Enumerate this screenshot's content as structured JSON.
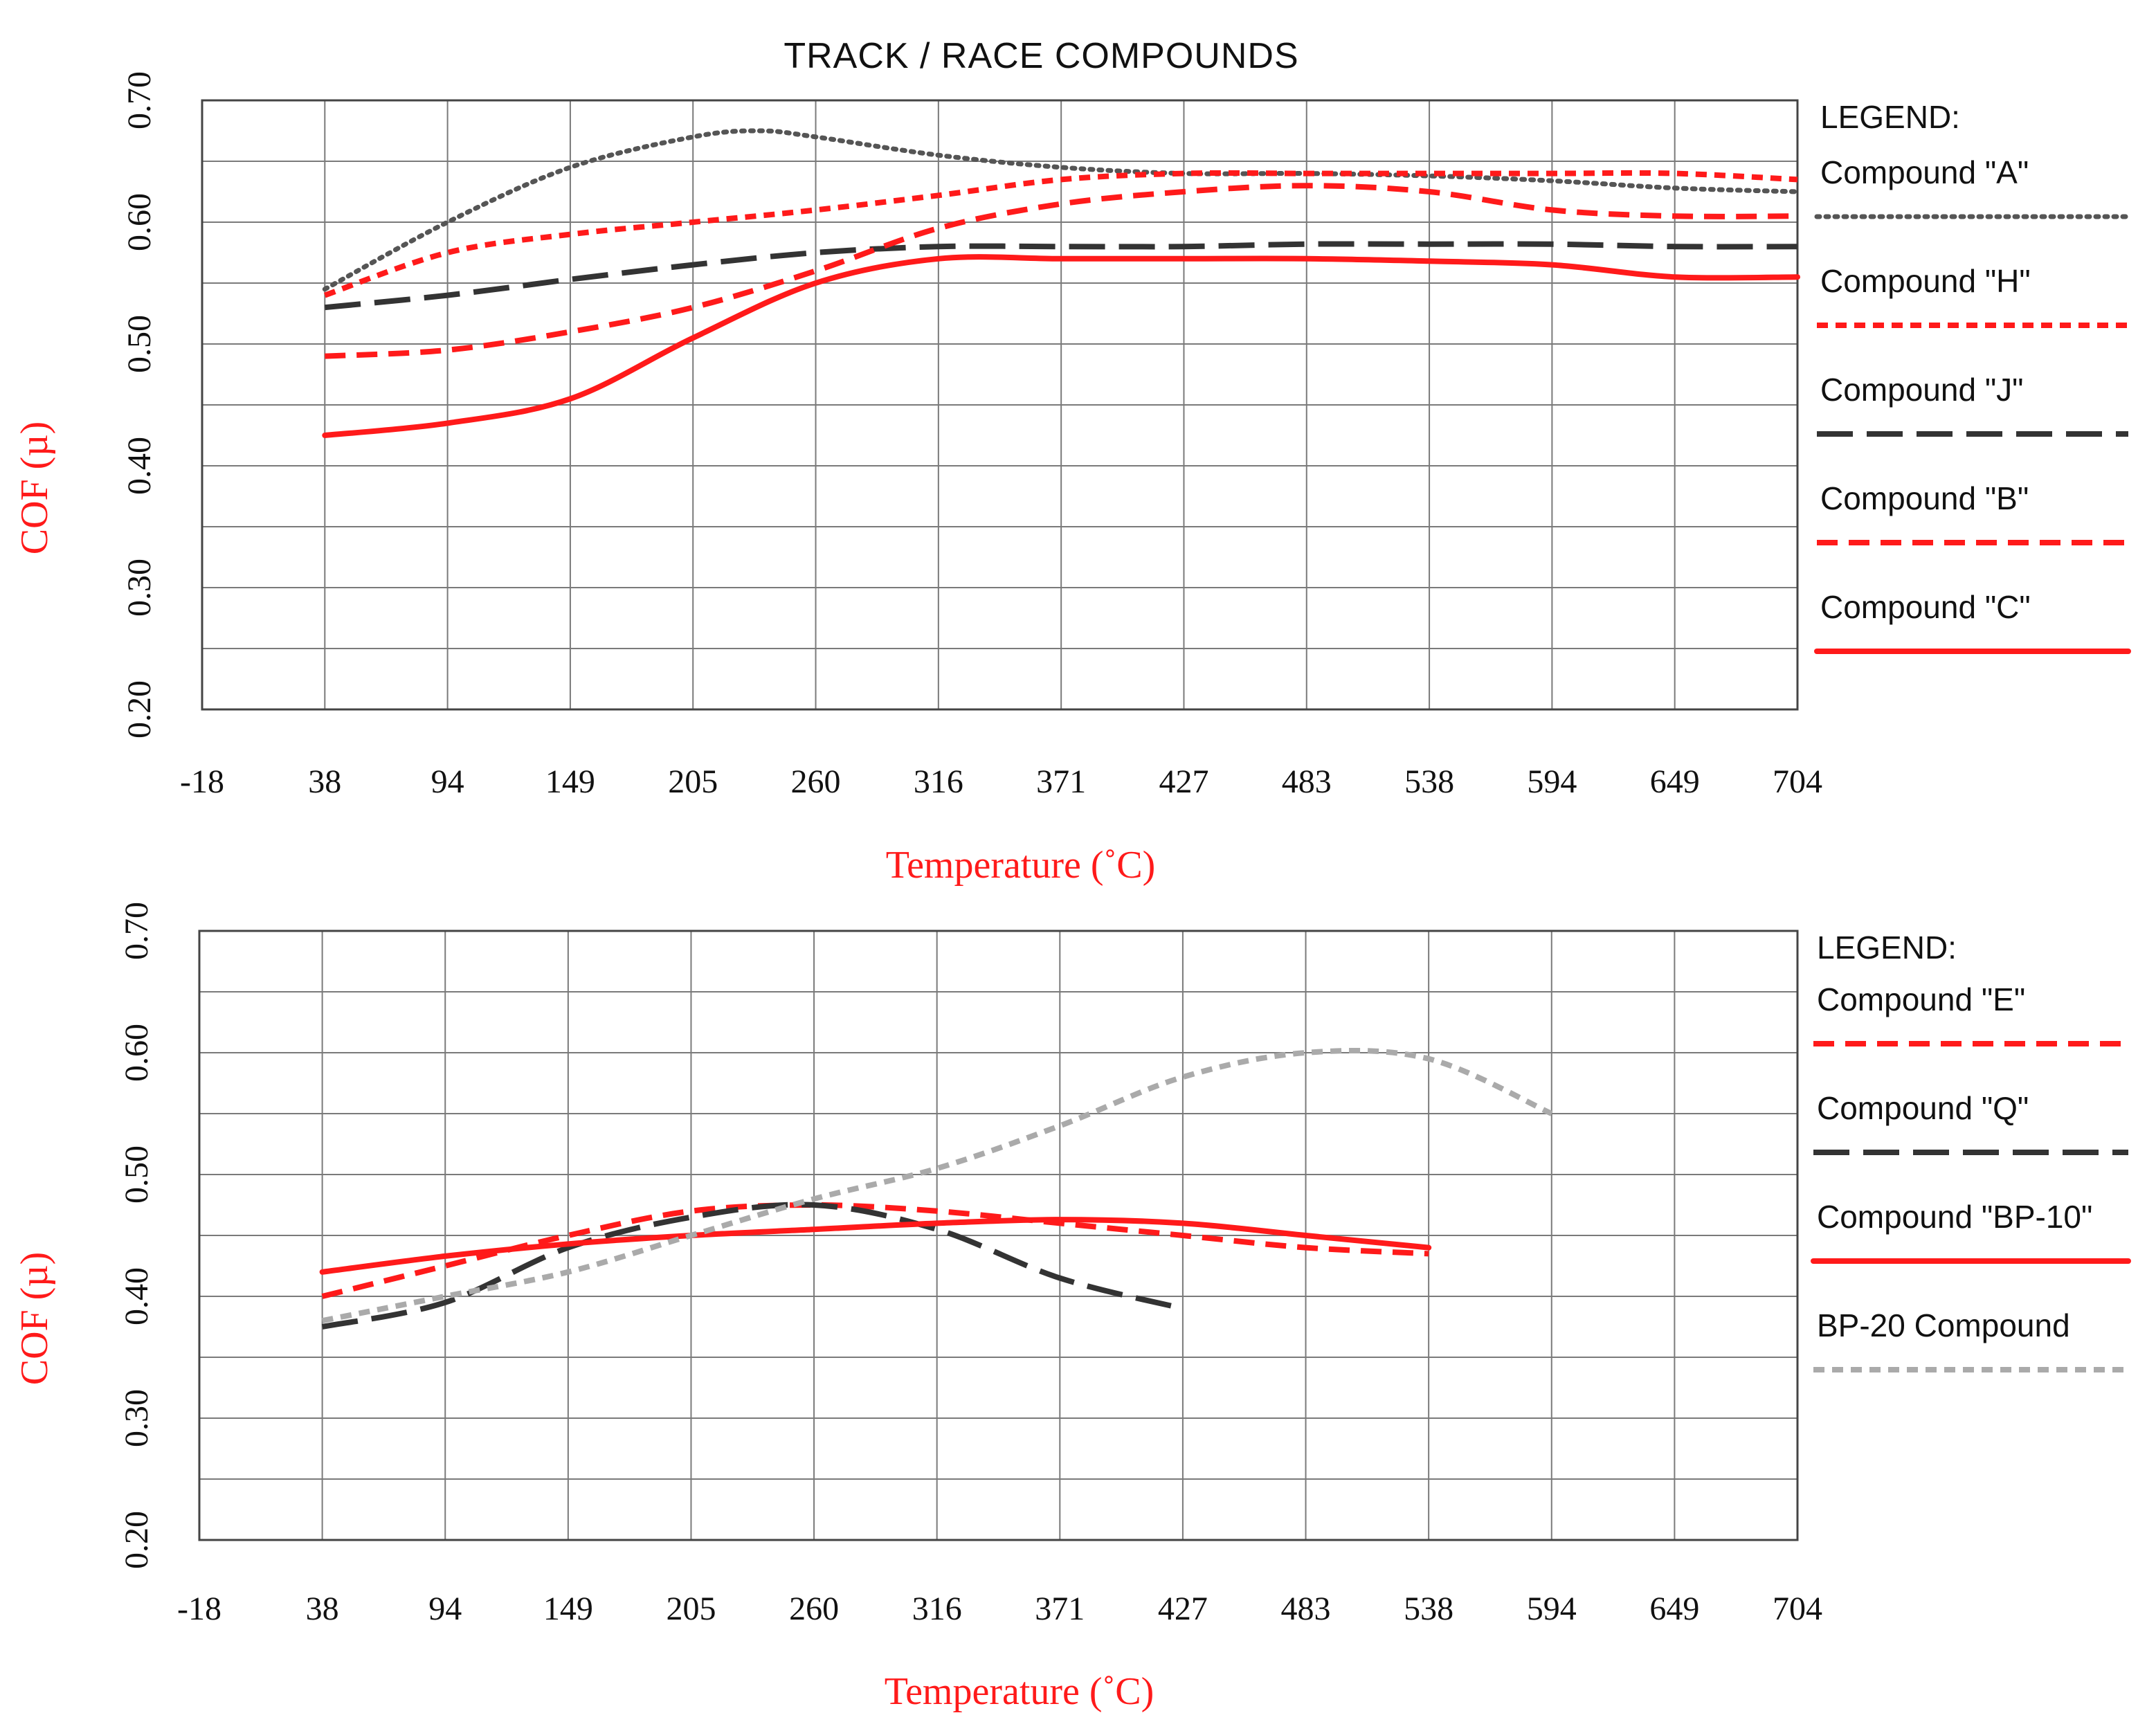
{
  "colors": {
    "red": "#ff1a1a",
    "dark": "#333333",
    "dot_dark": "#555555",
    "light_gray": "#aaaaaa"
  },
  "chart_data": [
    {
      "type": "line",
      "title": "TRACK / RACE COMPOUNDS",
      "xlabel": "Temperature (˚C)",
      "ylabel": "COF (µ)",
      "x_ticks": [
        "-18",
        "38",
        "94",
        "149",
        "205",
        "260",
        "316",
        "371",
        "427",
        "483",
        "538",
        "594",
        "649",
        "704"
      ],
      "y_ticks": [
        "0.20",
        "0.30",
        "0.40",
        "0.50",
        "0.60",
        "0.70"
      ],
      "ylim": [
        0.2,
        0.7
      ],
      "grid": true,
      "legend_title": "LEGEND:",
      "legend_position": "right",
      "series": [
        {
          "name": "Compound \"A\"",
          "color": "#555555",
          "dash": "dotted",
          "x": [
            38,
            94,
            149,
            205,
            235,
            260,
            316,
            371,
            427,
            483,
            538,
            594,
            649,
            704
          ],
          "y": [
            0.545,
            0.6,
            0.645,
            0.67,
            0.675,
            0.67,
            0.655,
            0.645,
            0.64,
            0.64,
            0.638,
            0.634,
            0.628,
            0.625
          ]
        },
        {
          "name": "Compound \"H\"",
          "color": "#ff1a1a",
          "dash": "short",
          "x": [
            38,
            94,
            149,
            205,
            260,
            316,
            371,
            427,
            483,
            538,
            594,
            649,
            704
          ],
          "y": [
            0.54,
            0.575,
            0.59,
            0.6,
            0.61,
            0.622,
            0.635,
            0.64,
            0.64,
            0.64,
            0.64,
            0.64,
            0.635
          ]
        },
        {
          "name": "Compound \"J\"",
          "color": "#333333",
          "dash": "long",
          "x": [
            38,
            94,
            149,
            205,
            260,
            316,
            371,
            427,
            483,
            538,
            594,
            649,
            704
          ],
          "y": [
            0.53,
            0.54,
            0.553,
            0.565,
            0.575,
            0.58,
            0.58,
            0.58,
            0.582,
            0.582,
            0.582,
            0.58,
            0.58
          ]
        },
        {
          "name": "Compound \"B\"",
          "color": "#ff1a1a",
          "dash": "medium",
          "x": [
            38,
            94,
            149,
            205,
            260,
            316,
            371,
            427,
            483,
            538,
            594,
            649,
            704
          ],
          "y": [
            0.49,
            0.495,
            0.51,
            0.53,
            0.56,
            0.595,
            0.615,
            0.625,
            0.63,
            0.625,
            0.61,
            0.605,
            0.605
          ]
        },
        {
          "name": "Compound \"C\"",
          "color": "#ff1a1a",
          "dash": "solid",
          "x": [
            38,
            94,
            149,
            205,
            260,
            316,
            371,
            427,
            483,
            538,
            594,
            649,
            704
          ],
          "y": [
            0.425,
            0.435,
            0.455,
            0.505,
            0.55,
            0.57,
            0.57,
            0.57,
            0.57,
            0.568,
            0.565,
            0.555,
            0.555
          ]
        }
      ]
    },
    {
      "type": "line",
      "title": "",
      "xlabel": "Temperature (˚C)",
      "ylabel": "COF (µ)",
      "x_ticks": [
        "-18",
        "38",
        "94",
        "149",
        "205",
        "260",
        "316",
        "371",
        "427",
        "483",
        "538",
        "594",
        "649",
        "704"
      ],
      "y_ticks": [
        "0.20",
        "0.30",
        "0.40",
        "0.50",
        "0.60",
        "0.70"
      ],
      "ylim": [
        0.2,
        0.7
      ],
      "grid": true,
      "legend_title": "LEGEND:",
      "legend_position": "right",
      "series": [
        {
          "name": "Compound \"E\"",
          "color": "#ff1a1a",
          "dash": "medium",
          "x": [
            38,
            94,
            149,
            205,
            260,
            316,
            371,
            427,
            483,
            538
          ],
          "y": [
            0.4,
            0.425,
            0.45,
            0.47,
            0.475,
            0.47,
            0.46,
            0.45,
            0.44,
            0.435
          ]
        },
        {
          "name": "Compound \"Q\"",
          "color": "#333333",
          "dash": "long",
          "x": [
            38,
            94,
            149,
            205,
            260,
            316,
            371,
            427
          ],
          "y": [
            0.375,
            0.395,
            0.44,
            0.465,
            0.475,
            0.455,
            0.415,
            0.39
          ]
        },
        {
          "name": "Compound \"BP-10\"",
          "color": "#ff1a1a",
          "dash": "solid",
          "x": [
            38,
            94,
            149,
            205,
            260,
            316,
            371,
            427,
            483,
            538
          ],
          "y": [
            0.42,
            0.433,
            0.443,
            0.45,
            0.455,
            0.46,
            0.463,
            0.46,
            0.45,
            0.44
          ]
        },
        {
          "name": "BP-20 Compound",
          "color": "#aaaaaa",
          "dash": "short",
          "x": [
            38,
            94,
            149,
            205,
            260,
            316,
            371,
            427,
            483,
            538,
            594
          ],
          "y": [
            0.38,
            0.4,
            0.42,
            0.45,
            0.48,
            0.505,
            0.54,
            0.58,
            0.6,
            0.595,
            0.55
          ]
        }
      ]
    }
  ]
}
